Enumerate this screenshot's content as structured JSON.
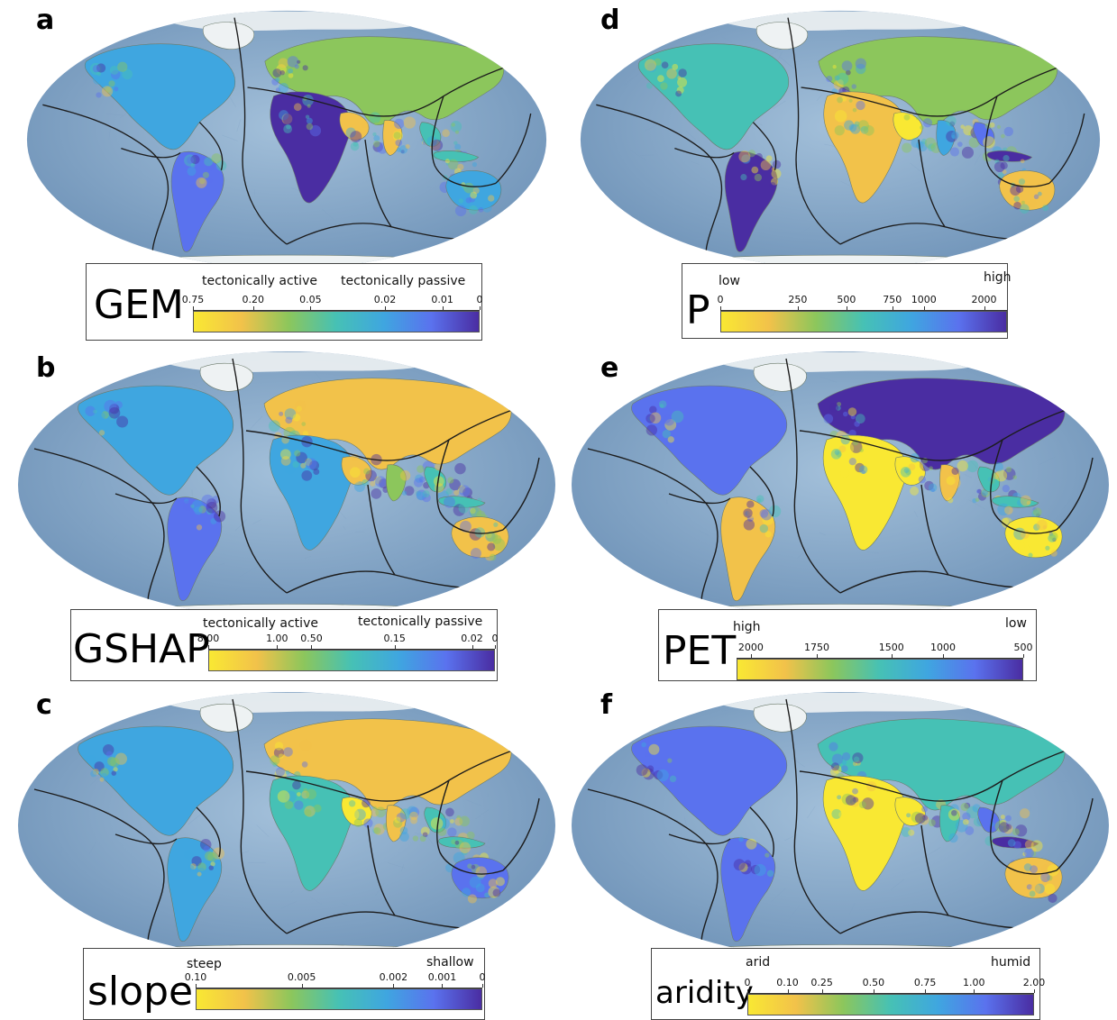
{
  "colors": {
    "ocean": "#8fb0cf",
    "ocean_dark": "#6f93b8",
    "land_gray": "#c9d2c6",
    "ice": "#eef2f3",
    "plate_boundary": "#1c1c1c",
    "cmap": [
      "#f9e833",
      "#f2c24a",
      "#8cc65c",
      "#46c1b5",
      "#3fa6e0",
      "#5a72ee",
      "#4a2da2"
    ]
  },
  "panels": [
    {
      "letter": "a",
      "name": "GEM",
      "desc_left": "tectonically active",
      "desc_right": "tectonically passive",
      "ticks": [
        "0.75",
        "0.20",
        "0.05",
        "0.02",
        "0.01",
        "0"
      ],
      "tick_pos": [
        0,
        0.21,
        0.41,
        0.67,
        0.87,
        1
      ],
      "reversed": false
    },
    {
      "letter": "b",
      "name": "GSHAP",
      "desc_left": "tectonically active",
      "desc_right": "tectonically passive",
      "ticks": [
        "8.00",
        "1.00",
        "0.50",
        "0.15",
        "0.02",
        "0"
      ],
      "tick_pos": [
        0,
        0.24,
        0.36,
        0.65,
        0.92,
        1
      ],
      "reversed": false
    },
    {
      "letter": "c",
      "name": "slope",
      "desc_left": "steep",
      "desc_right": "shallow",
      "ticks": [
        "0.10",
        "0.005",
        "0.002",
        "0.001",
        "0"
      ],
      "tick_pos": [
        0,
        0.37,
        0.69,
        0.86,
        1
      ],
      "reversed": false
    },
    {
      "letter": "d",
      "name": "P",
      "desc_left": "low",
      "desc_right": "high",
      "ticks": [
        "0",
        "250",
        "500",
        "750",
        "1000",
        "2000"
      ],
      "tick_pos": [
        0,
        0.27,
        0.44,
        0.6,
        0.71,
        0.92
      ],
      "reversed": false
    },
    {
      "letter": "e",
      "name": "PET",
      "desc_left": "high",
      "desc_right": "low",
      "ticks": [
        "2000",
        "1750",
        "1500",
        "1000",
        "500"
      ],
      "tick_pos": [
        0.05,
        0.28,
        0.54,
        0.72,
        1
      ],
      "reversed": false
    },
    {
      "letter": "f",
      "name": "aridity",
      "desc_left": "arid",
      "desc_right": "humid",
      "ticks": [
        "0",
        "0.10",
        "0.25",
        "0.50",
        "0.75",
        "1.00",
        "2.00"
      ],
      "tick_pos": [
        0,
        0.14,
        0.26,
        0.44,
        0.62,
        0.79,
        1
      ],
      "reversed": false
    }
  ]
}
